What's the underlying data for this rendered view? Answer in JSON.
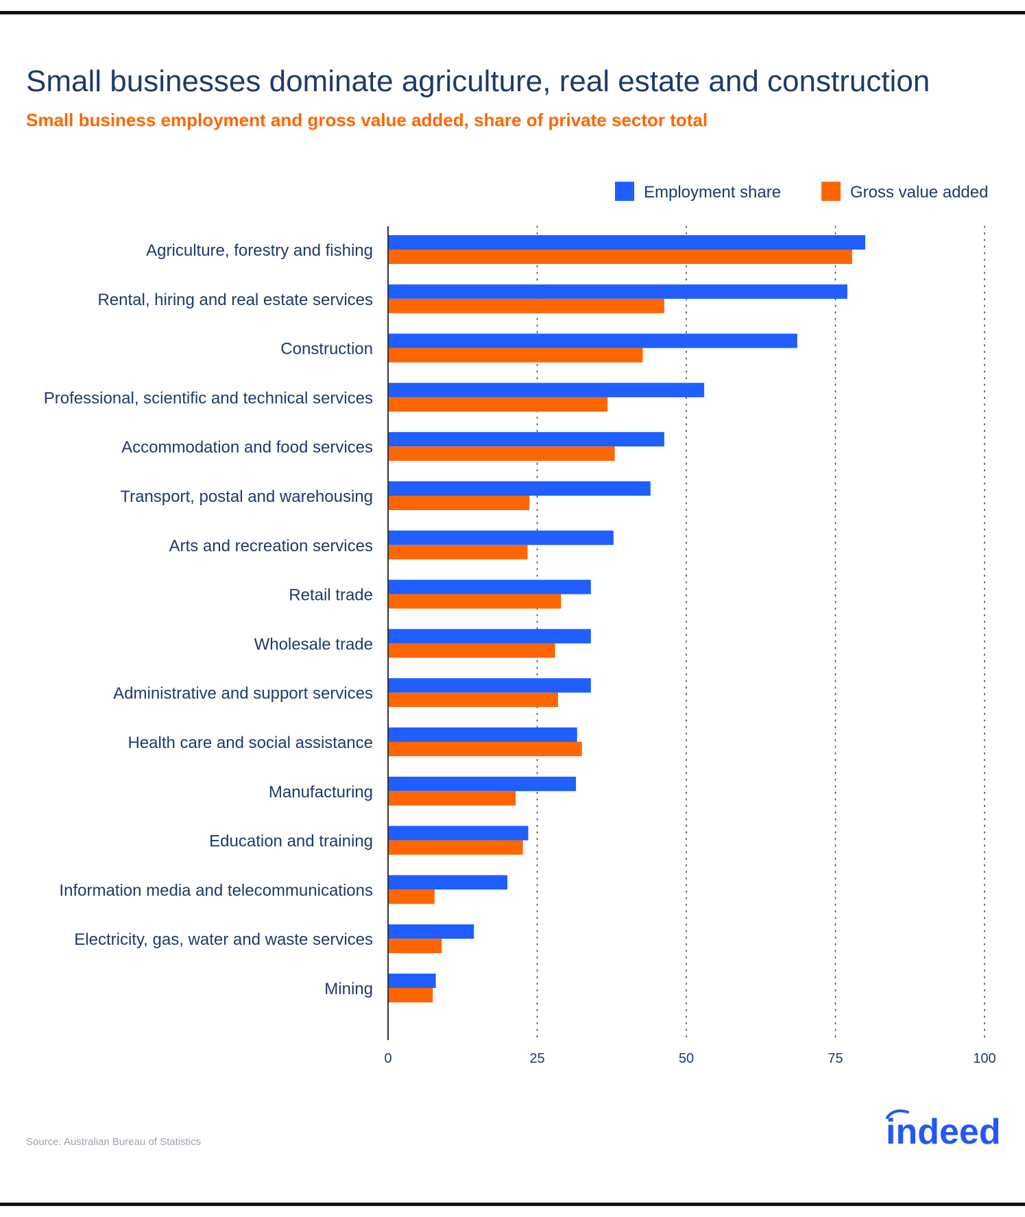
{
  "header": {
    "title": "Small businesses dominate agriculture, real estate and construction",
    "subtitle": "Small business employment and gross value added, share of private sector total"
  },
  "footer": {
    "source": "Source: Australian Bureau of Statistics",
    "logo_text": "indeed"
  },
  "colors": {
    "employment": "#1f5eff",
    "gva": "#ff6600",
    "text": "#1f3a68",
    "grid": "#444444"
  },
  "chart_data": {
    "type": "bar",
    "orientation": "horizontal",
    "title": "Small businesses dominate agriculture, real estate and construction",
    "subtitle": "Small business employment and gross value added, share of private sector total",
    "xlim": [
      0,
      100
    ],
    "xticks": [
      "0",
      "25",
      "50",
      "75",
      "100"
    ],
    "grid": "dotted vertical",
    "legend_position": "top-right",
    "categories": [
      "Agriculture, forestry and fishing",
      "Rental, hiring and real estate services",
      "Construction",
      "Professional, scientific and technical services",
      "Accommodation and food services",
      "Transport, postal and warehousing",
      "Arts and recreation services",
      "Retail trade",
      "Wholesale trade",
      "Administrative and support services",
      "Health care and social assistance",
      "Manufacturing",
      "Education and training",
      "Information media and telecommunications",
      "Electricity, gas, water and waste services",
      "Mining"
    ],
    "series": [
      {
        "name": "Employment share",
        "values": [
          80,
          77,
          68.6,
          53,
          46.3,
          44,
          37.8,
          34,
          34,
          34,
          31.7,
          31.5,
          23.5,
          20,
          14.4,
          8
        ]
      },
      {
        "name": "Gross value added",
        "values": [
          77.8,
          46.3,
          42.7,
          36.8,
          38,
          23.7,
          23.4,
          29,
          28,
          28.5,
          32.5,
          21.4,
          22.6,
          7.8,
          9,
          7.5
        ]
      }
    ]
  }
}
